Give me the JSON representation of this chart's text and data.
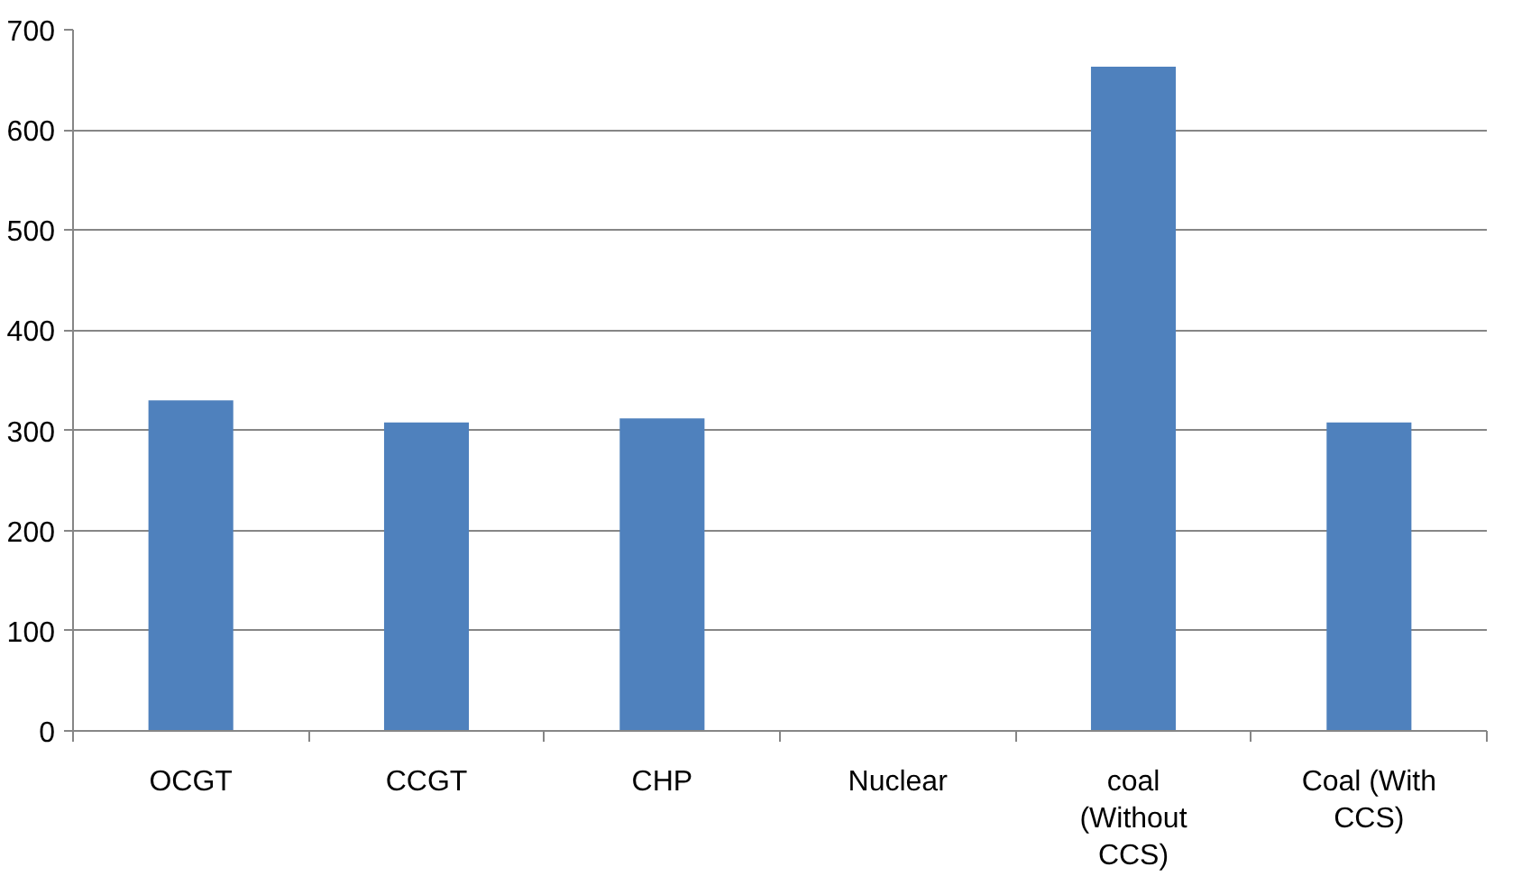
{
  "chart_data": {
    "type": "bar",
    "categories": [
      "OCGT",
      "CCGT",
      "CHP",
      "Nuclear",
      "coal (Without CCS)",
      "Coal (With CCS)"
    ],
    "values": [
      330,
      308,
      312,
      0,
      663,
      308
    ],
    "color": "#4f81bd",
    "ylim": [
      0,
      700
    ],
    "yticks": [
      0,
      100,
      200,
      300,
      400,
      500,
      600,
      700
    ],
    "grid": "y"
  }
}
